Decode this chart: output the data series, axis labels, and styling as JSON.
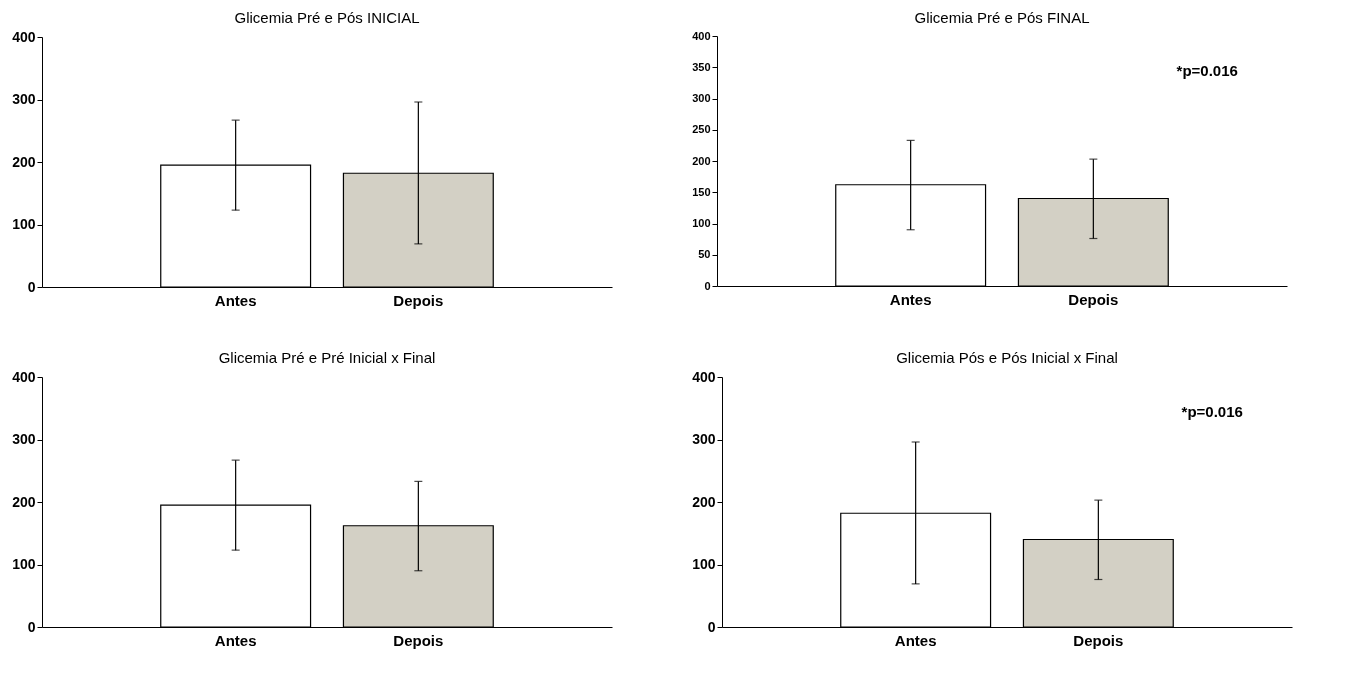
{
  "chart_data": [
    {
      "type": "bar",
      "title": "Glicemia Pré e Pós INICIAL",
      "categories": [
        "Antes",
        "Depois"
      ],
      "values": [
        195,
        182
      ],
      "colors": [
        "#ffffff",
        "#d3d0c5"
      ],
      "errors": [
        [
          123,
          267
        ],
        [
          69,
          296
        ]
      ],
      "ylim": [
        0,
        400
      ],
      "yticks": [
        0,
        100,
        200,
        300,
        400
      ]
    },
    {
      "type": "bar",
      "title": "Glicemia Pré e Pós FINAL",
      "categories": [
        "Antes",
        "Depois"
      ],
      "values": [
        162,
        140
      ],
      "colors": [
        "#ffffff",
        "#d3d0c5"
      ],
      "errors": [
        [
          90,
          233
        ],
        [
          76,
          203
        ]
      ],
      "ylim": [
        0,
        400
      ],
      "yticks": [
        0,
        50,
        100,
        150,
        200,
        250,
        300,
        350,
        400
      ],
      "annotations": [
        "*p=0.016"
      ]
    },
    {
      "type": "bar",
      "title": "Glicemia Pré e Pré Inicial x Final",
      "categories": [
        "Antes",
        "Depois"
      ],
      "values": [
        195,
        162
      ],
      "colors": [
        "#ffffff",
        "#d3d0c5"
      ],
      "errors": [
        [
          123,
          267
        ],
        [
          90,
          233
        ]
      ],
      "ylim": [
        0,
        400
      ],
      "yticks": [
        0,
        100,
        200,
        300,
        400
      ]
    },
    {
      "type": "bar",
      "title": "Glicemia Pós e Pós Inicial x Final",
      "categories": [
        "Antes",
        "Depois"
      ],
      "values": [
        182,
        140
      ],
      "colors": [
        "#ffffff",
        "#d3d0c5"
      ],
      "errors": [
        [
          69,
          296
        ],
        [
          76,
          203
        ]
      ],
      "ylim": [
        0,
        400
      ],
      "yticks": [
        0,
        100,
        200,
        300,
        400
      ],
      "annotations": [
        "*p=0.016"
      ]
    }
  ]
}
